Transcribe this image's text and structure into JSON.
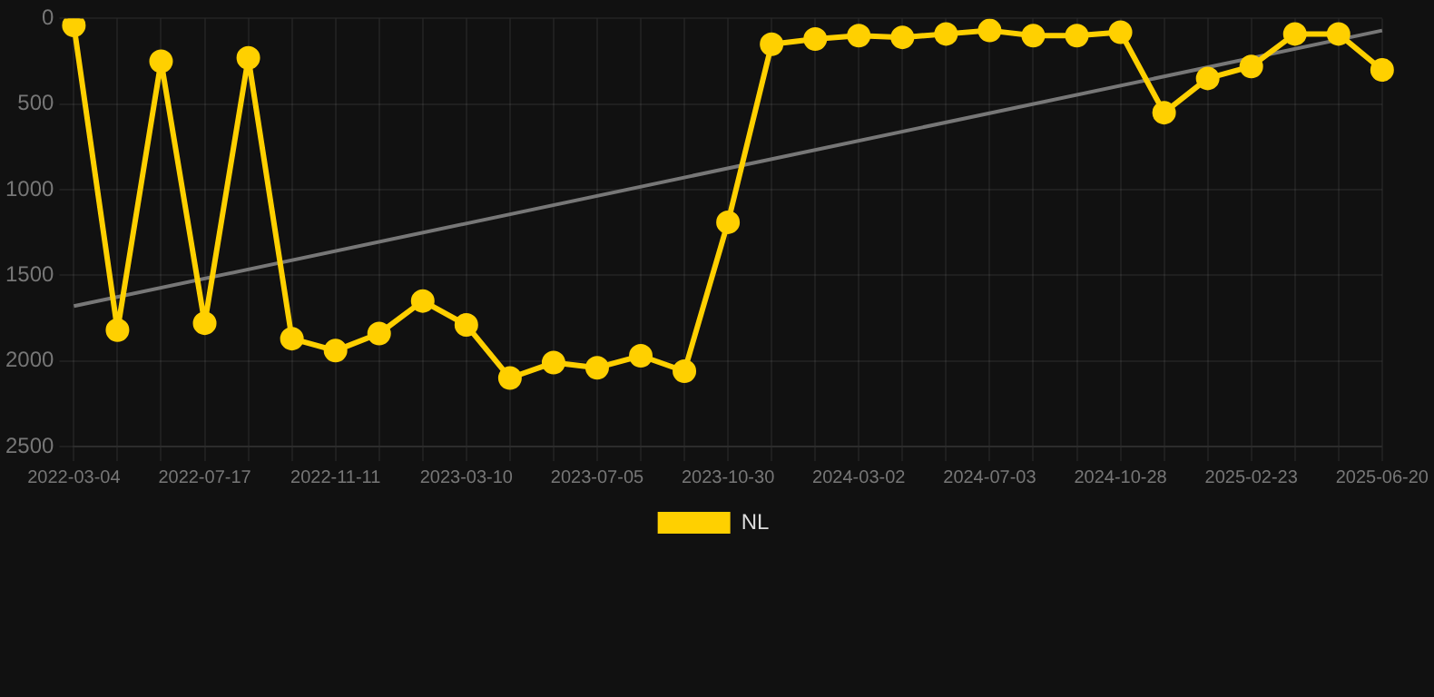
{
  "chart_data": {
    "type": "line",
    "categories": [
      "2022-03-04",
      null,
      null,
      "2022-07-17",
      null,
      null,
      "2022-11-11",
      null,
      null,
      "2023-03-10",
      null,
      null,
      "2023-07-05",
      null,
      null,
      "2023-10-30",
      null,
      null,
      "2024-03-02",
      null,
      null,
      "2024-07-03",
      null,
      null,
      "2024-10-28",
      null,
      null,
      "2025-02-23",
      null,
      null,
      "2025-06-20"
    ],
    "series": [
      {
        "name": "NL",
        "color": "#ffd000",
        "marker": "circle",
        "values": [
          40,
          1820,
          250,
          1780,
          230,
          1870,
          1940,
          1840,
          1650,
          1790,
          2100,
          2010,
          2040,
          1970,
          2060,
          1190,
          150,
          120,
          100,
          110,
          90,
          70,
          100,
          100,
          80,
          550,
          350,
          280,
          90,
          90,
          300
        ]
      },
      {
        "type": "line",
        "color": "#777777",
        "marker": "none",
        "values": [
          1680,
          null,
          null,
          null,
          null,
          null,
          null,
          null,
          null,
          null,
          null,
          null,
          null,
          null,
          null,
          null,
          null,
          null,
          null,
          null,
          null,
          null,
          null,
          null,
          null,
          null,
          null,
          null,
          null,
          null,
          70
        ]
      }
    ],
    "ylim": [
      2500,
      0
    ],
    "yticks": [
      0,
      500,
      1000,
      1500,
      2000,
      2500
    ],
    "grid": true,
    "legend": "bottom",
    "line_style": "solid"
  }
}
